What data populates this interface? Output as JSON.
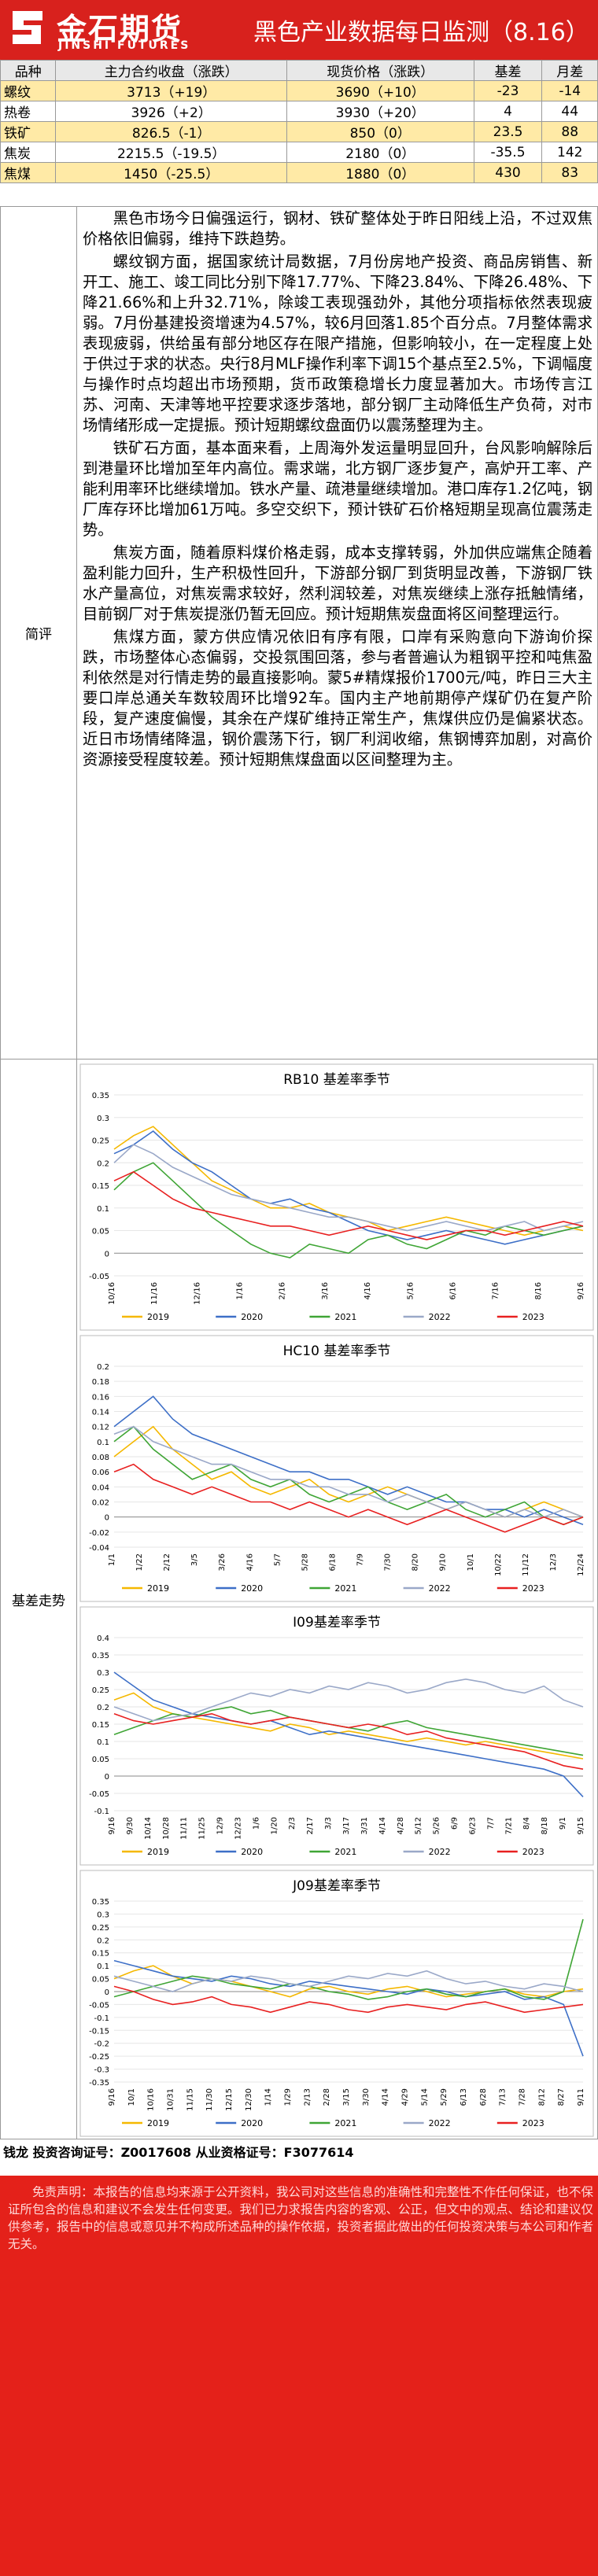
{
  "header": {
    "brand_cn": "金石期货",
    "brand_en": "JINSHI FUTURES",
    "title": "黑色产业数据每日监测（8.16）"
  },
  "quote_table": {
    "columns": [
      "品种",
      "主力合约收盘（涨跌）",
      "现货价格（涨跌）",
      "基差",
      "月差"
    ],
    "rows": [
      [
        "螺纹",
        "3713（+19）",
        "3690（+10）",
        "-23",
        "-14"
      ],
      [
        "热卷",
        "3926（+2）",
        "3930（+20）",
        "4",
        "44"
      ],
      [
        "铁矿",
        "826.5（-1）",
        "850（0）",
        "23.5",
        "88"
      ],
      [
        "焦炭",
        "2215.5（-19.5）",
        "2180（0）",
        "-35.5",
        "142"
      ],
      [
        "焦煤",
        "1450（-25.5）",
        "1880（0）",
        "430",
        "83"
      ]
    ]
  },
  "review": {
    "label": "简评",
    "paragraphs": [
      "黑色市场今日偏强运行，钢材、铁矿整体处于昨日阳线上沿，不过双焦价格依旧偏弱，维持下跌趋势。",
      "螺纹钢方面，据国家统计局数据，7月份房地产投资、商品房销售、新开工、施工、竣工同比分别下降17.77%、下降23.84%、下降26.48%、下降21.66%和上升32.71%，除竣工表现强劲外，其他分项指标依然表现疲弱。7月份基建投资增速为4.57%，较6月回落1.85个百分点。7月整体需求表现疲弱，供给虽有部分地区存在限产措施，但影响较小，在一定程度上处于供过于求的状态。央行8月MLF操作利率下调15个基点至2.5%，下调幅度与操作时点均超出市场预期，货币政策稳增长力度显著加大。市场传言江苏、河南、天津等地平控要求逐步落地，部分钢厂主动降低生产负荷，对市场情绪形成一定提振。预计短期螺纹盘面仍以震荡整理为主。",
      "铁矿石方面，基本面来看，上周海外发运量明显回升，台风影响解除后到港量环比增加至年内高位。需求端，北方钢厂逐步复产，高炉开工率、产能利用率环比继续增加。铁水产量、疏港量继续增加。港口库存1.2亿吨，钢厂库存环比增加61万吨。多空交织下，预计铁矿石价格短期呈现高位震荡走势。",
      "焦炭方面，随着原料煤价格走弱，成本支撑转弱，外加供应端焦企随着盈利能力回升，生产积极性回升，下游部分钢厂到货明显改善，下游钢厂铁水产量高位，对焦炭需求较好，然利润较差，对焦炭继续上涨存抵触情绪，目前钢厂对于焦炭提涨仍暂无回应。预计短期焦炭盘面将区间整理运行。",
      "焦煤方面，蒙方供应情况依旧有序有限，口岸有采购意向下游询价探跌，市场整体心态偏弱，交投氛围回落，参与者普遍认为粗钢平控和吨焦盈利依然是对行情走势的最直接影响。蒙5#精煤报价1700元/吨，昨日三大主要口岸总通关车数较周环比增92车。国内主产地前期停产煤矿仍在复产阶段，复产速度偏慢，其余在产煤矿维持正常生产，焦煤供应仍是偏紧状态。近日市场情绪降温，钢价震荡下行，钢厂利润收缩，焦钢博弈加剧，对高价资源接受程度较差。预计短期焦煤盘面以区间整理为主。"
    ]
  },
  "basis_section": {
    "label": "基差走势"
  },
  "colors": {
    "2019": "#f5b800",
    "2020": "#3d6fc7",
    "2021": "#3fa535",
    "2022": "#9aa8c8",
    "2023": "#e82020"
  },
  "chart_data": [
    {
      "type": "line",
      "title": "RB10 基差率季节",
      "ylim": [
        -0.05,
        0.35
      ],
      "yticks": [
        "0.35",
        "0.3",
        "0.25",
        "0.2",
        "0.15",
        "0.1",
        "0.05",
        "0",
        "-0.05"
      ],
      "xticks": [
        "10/16",
        "11/16",
        "12/16",
        "1/16",
        "2/16",
        "3/16",
        "4/16",
        "5/16",
        "6/16",
        "7/16",
        "8/16",
        "9/16"
      ],
      "series": [
        {
          "name": "2019",
          "values": [
            0.23,
            0.26,
            0.28,
            0.24,
            0.2,
            0.16,
            0.14,
            0.12,
            0.1,
            0.1,
            0.11,
            0.09,
            0.08,
            0.07,
            0.05,
            0.06,
            0.07,
            0.08,
            0.07,
            0.06,
            0.05,
            0.04,
            0.05,
            0.06,
            0.05
          ]
        },
        {
          "name": "2020",
          "values": [
            0.22,
            0.24,
            0.27,
            0.23,
            0.2,
            0.18,
            0.15,
            0.12,
            0.11,
            0.12,
            0.1,
            0.09,
            0.07,
            0.05,
            0.04,
            0.03,
            0.04,
            0.05,
            0.04,
            0.03,
            0.02,
            0.03,
            0.04,
            0.05,
            0.06
          ]
        },
        {
          "name": "2021",
          "values": [
            0.14,
            0.18,
            0.2,
            0.16,
            0.12,
            0.08,
            0.05,
            0.02,
            0.0,
            -0.01,
            0.02,
            0.01,
            0.0,
            0.03,
            0.04,
            0.02,
            0.01,
            0.03,
            0.05,
            0.04,
            0.06,
            0.05,
            0.04,
            0.05,
            0.06
          ]
        },
        {
          "name": "2022",
          "values": [
            0.2,
            0.24,
            0.22,
            0.19,
            0.17,
            0.15,
            0.13,
            0.12,
            0.11,
            0.1,
            0.09,
            0.08,
            0.08,
            0.07,
            0.06,
            0.05,
            0.06,
            0.07,
            0.06,
            0.05,
            0.06,
            0.07,
            0.05,
            0.06,
            0.07
          ]
        },
        {
          "name": "2023",
          "values": [
            0.16,
            0.18,
            0.15,
            0.12,
            0.1,
            0.09,
            0.08,
            0.07,
            0.06,
            0.06,
            0.05,
            0.04,
            0.05,
            0.06,
            0.05,
            0.04,
            0.03,
            0.04,
            0.05,
            0.05,
            0.04,
            0.05,
            0.06,
            0.07,
            0.06
          ]
        }
      ]
    },
    {
      "type": "line",
      "title": "HC10 基差率季节",
      "ylim": [
        -0.04,
        0.2
      ],
      "yticks": [
        "0.2",
        "0.18",
        "0.16",
        "0.14",
        "0.12",
        "0.1",
        "0.08",
        "0.06",
        "0.04",
        "0.02",
        "0",
        "-0.02",
        "-0.04"
      ],
      "xticks": [
        "1/1",
        "1/22",
        "2/12",
        "3/5",
        "3/26",
        "4/16",
        "5/7",
        "5/28",
        "6/18",
        "7/9",
        "7/30",
        "8/20",
        "9/10",
        "10/1",
        "10/22",
        "11/12",
        "12/3",
        "12/24"
      ],
      "series": [
        {
          "name": "2019",
          "values": [
            0.08,
            0.1,
            0.12,
            0.09,
            0.07,
            0.05,
            0.06,
            0.04,
            0.03,
            0.04,
            0.05,
            0.03,
            0.02,
            0.03,
            0.04,
            0.03,
            0.02,
            0.01,
            0.02,
            0.01,
            0.0,
            0.01,
            0.02,
            0.01,
            0.0
          ]
        },
        {
          "name": "2020",
          "values": [
            0.12,
            0.14,
            0.16,
            0.13,
            0.11,
            0.1,
            0.09,
            0.08,
            0.07,
            0.06,
            0.06,
            0.05,
            0.05,
            0.04,
            0.03,
            0.04,
            0.03,
            0.02,
            0.02,
            0.01,
            0.01,
            0.0,
            0.01,
            0.0,
            -0.01
          ]
        },
        {
          "name": "2021",
          "values": [
            0.1,
            0.12,
            0.09,
            0.07,
            0.05,
            0.06,
            0.07,
            0.05,
            0.04,
            0.05,
            0.03,
            0.02,
            0.03,
            0.04,
            0.02,
            0.01,
            0.02,
            0.03,
            0.01,
            0.0,
            0.01,
            0.02,
            0.0,
            -0.01,
            0.0
          ]
        },
        {
          "name": "2022",
          "values": [
            0.11,
            0.12,
            0.1,
            0.09,
            0.08,
            0.07,
            0.07,
            0.06,
            0.05,
            0.05,
            0.04,
            0.04,
            0.03,
            0.03,
            0.02,
            0.03,
            0.02,
            0.01,
            0.02,
            0.01,
            0.0,
            0.01,
            0.0,
            0.01,
            0.0
          ]
        },
        {
          "name": "2023",
          "values": [
            0.06,
            0.07,
            0.05,
            0.04,
            0.03,
            0.04,
            0.03,
            0.02,
            0.02,
            0.01,
            0.02,
            0.01,
            0.0,
            0.01,
            0.0,
            -0.01,
            0.0,
            0.01,
            0.0,
            -0.01,
            -0.02,
            -0.01,
            0.0,
            -0.01,
            0.0
          ]
        }
      ]
    },
    {
      "type": "line",
      "title": "I09基差率季节",
      "ylim": [
        -0.1,
        0.4
      ],
      "yticks": [
        "0.4",
        "0.35",
        "0.3",
        "0.25",
        "0.2",
        "0.15",
        "0.1",
        "0.05",
        "0",
        "-0.05",
        "-0.1"
      ],
      "xticks": [
        "9/16",
        "9/30",
        "10/14",
        "10/28",
        "11/11",
        "11/25",
        "12/9",
        "12/23",
        "1/6",
        "1/20",
        "2/3",
        "2/17",
        "3/3",
        "3/17",
        "3/31",
        "4/14",
        "4/28",
        "5/12",
        "5/26",
        "6/9",
        "6/23",
        "7/7",
        "7/21",
        "8/4",
        "8/18",
        "9/1",
        "9/15"
      ],
      "series": [
        {
          "name": "2019",
          "values": [
            0.22,
            0.24,
            0.2,
            0.18,
            0.17,
            0.16,
            0.15,
            0.14,
            0.13,
            0.15,
            0.14,
            0.12,
            0.13,
            0.12,
            0.11,
            0.1,
            0.11,
            0.1,
            0.09,
            0.1,
            0.09,
            0.08,
            0.07,
            0.06,
            0.05
          ]
        },
        {
          "name": "2020",
          "values": [
            0.3,
            0.26,
            0.22,
            0.2,
            0.18,
            0.17,
            0.16,
            0.15,
            0.16,
            0.14,
            0.12,
            0.13,
            0.12,
            0.11,
            0.1,
            0.09,
            0.08,
            0.07,
            0.06,
            0.05,
            0.04,
            0.03,
            0.02,
            0.0,
            -0.06
          ]
        },
        {
          "name": "2021",
          "values": [
            0.12,
            0.14,
            0.16,
            0.18,
            0.17,
            0.19,
            0.2,
            0.18,
            0.19,
            0.17,
            0.16,
            0.15,
            0.14,
            0.13,
            0.15,
            0.16,
            0.14,
            0.13,
            0.12,
            0.11,
            0.1,
            0.09,
            0.08,
            0.07,
            0.06
          ]
        },
        {
          "name": "2022",
          "values": [
            0.2,
            0.18,
            0.16,
            0.17,
            0.18,
            0.2,
            0.22,
            0.24,
            0.23,
            0.25,
            0.24,
            0.26,
            0.25,
            0.27,
            0.26,
            0.24,
            0.25,
            0.27,
            0.28,
            0.27,
            0.25,
            0.24,
            0.26,
            0.22,
            0.2
          ]
        },
        {
          "name": "2023",
          "values": [
            0.18,
            0.16,
            0.15,
            0.16,
            0.17,
            0.18,
            0.16,
            0.15,
            0.16,
            0.17,
            0.16,
            0.15,
            0.14,
            0.15,
            0.14,
            0.12,
            0.13,
            0.11,
            0.1,
            0.09,
            0.08,
            0.07,
            0.05,
            0.03,
            0.02
          ]
        }
      ]
    },
    {
      "type": "line",
      "title": "J09基差率季节",
      "ylim": [
        -0.35,
        0.35
      ],
      "yticks": [
        "0.35",
        "0.3",
        "0.25",
        "0.2",
        "0.15",
        "0.1",
        "0.05",
        "0",
        "-0.05",
        "-0.1",
        "-0.15",
        "-0.2",
        "-0.25",
        "-0.3",
        "-0.35"
      ],
      "xticks": [
        "9/16",
        "10/1",
        "10/16",
        "10/31",
        "11/15",
        "11/30",
        "12/15",
        "12/30",
        "1/14",
        "1/29",
        "2/13",
        "2/28",
        "3/15",
        "3/30",
        "4/14",
        "4/29",
        "5/14",
        "5/29",
        "6/13",
        "6/28",
        "7/13",
        "7/28",
        "8/12",
        "8/27",
        "9/11"
      ],
      "series": [
        {
          "name": "2019",
          "values": [
            0.05,
            0.08,
            0.1,
            0.06,
            0.03,
            0.05,
            0.04,
            0.02,
            0.0,
            -0.02,
            0.01,
            0.02,
            0.0,
            -0.01,
            0.01,
            0.02,
            0.0,
            -0.02,
            -0.01,
            0.0,
            0.01,
            -0.01,
            -0.02,
            0.0,
            0.01
          ]
        },
        {
          "name": "2020",
          "values": [
            0.12,
            0.1,
            0.08,
            0.06,
            0.05,
            0.04,
            0.06,
            0.05,
            0.03,
            0.02,
            0.04,
            0.03,
            0.02,
            0.01,
            0.0,
            -0.01,
            0.01,
            0.0,
            -0.02,
            -0.01,
            0.0,
            -0.03,
            -0.02,
            -0.05,
            -0.25
          ]
        },
        {
          "name": "2021",
          "values": [
            -0.02,
            0.0,
            0.02,
            0.04,
            0.06,
            0.05,
            0.03,
            0.02,
            0.01,
            0.03,
            0.02,
            0.0,
            -0.01,
            -0.03,
            -0.02,
            0.0,
            0.01,
            -0.01,
            -0.02,
            0.0,
            0.01,
            -0.02,
            -0.03,
            0.0,
            0.28
          ]
        },
        {
          "name": "2022",
          "values": [
            0.06,
            0.04,
            0.02,
            0.0,
            0.03,
            0.05,
            0.04,
            0.06,
            0.05,
            0.03,
            0.02,
            0.04,
            0.06,
            0.05,
            0.07,
            0.06,
            0.08,
            0.05,
            0.03,
            0.04,
            0.02,
            0.01,
            0.03,
            0.02,
            0.0
          ]
        },
        {
          "name": "2023",
          "values": [
            0.02,
            0.0,
            -0.03,
            -0.05,
            -0.04,
            -0.02,
            -0.05,
            -0.06,
            -0.08,
            -0.06,
            -0.04,
            -0.05,
            -0.07,
            -0.08,
            -0.06,
            -0.05,
            -0.06,
            -0.07,
            -0.05,
            -0.04,
            -0.06,
            -0.08,
            -0.07,
            -0.06,
            -0.05
          ]
        }
      ]
    }
  ],
  "signature": "钱龙 投资咨询证号：Z0017608 从业资格证号：F3077614",
  "disclaimer": "免责声明：本报告的信息均来源于公开资料，我公司对这些信息的准确性和完整性不作任何保证，也不保证所包含的信息和建议不会发生任何变更。我们已力求报告内容的客观、公正，但文中的观点、结论和建议仅供参考，报告中的信息或意见并不构成所述品种的操作依据，投资者据此做出的任何投资决策与本公司和作者无关。"
}
